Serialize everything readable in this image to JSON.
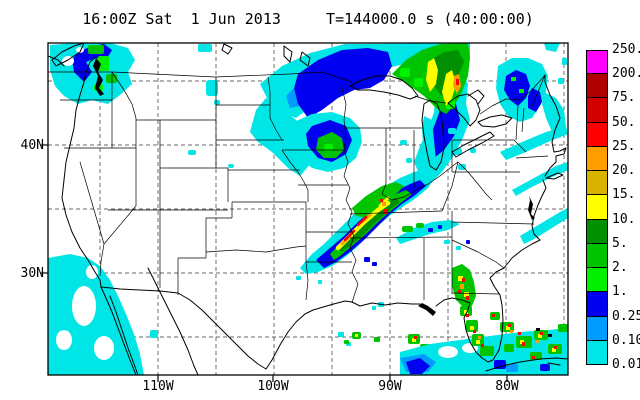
{
  "title": "16:00Z Sat  1 Jun 2013     T=144000.0 s (40:00:00)",
  "map": {
    "lat_labels": [
      "40N",
      "30N"
    ],
    "lon_labels": [
      "110W",
      "100W",
      "90W",
      "80W"
    ]
  },
  "colorbar": {
    "edge_labels": [
      "250.",
      "200.",
      "75.",
      "50.",
      "25.",
      "20.",
      "15.",
      "10.",
      "5.",
      "2.",
      "1.",
      "0.25",
      "0.10",
      "0.01"
    ],
    "swatch_colors_top_to_bottom": [
      "#ff00ff",
      "#b00000",
      "#d40000",
      "#ff0000",
      "#ff9e00",
      "#d8b400",
      "#ffff00",
      "#009000",
      "#00c400",
      "#00f000",
      "#0000f0",
      "#009cff",
      "#00e6e6"
    ]
  },
  "palette": {
    "cyan": "#00e6e6",
    "dodger": "#009cff",
    "blue": "#0000f0",
    "green_bright": "#00f000",
    "green_mid": "#00c400",
    "green_dark": "#009000",
    "yellow": "#ffff00",
    "gold": "#d8b400",
    "orange": "#ff9e00",
    "red": "#ff0000",
    "red_dark": "#d40000",
    "maroon": "#b00000",
    "magenta": "#ff00ff"
  }
}
